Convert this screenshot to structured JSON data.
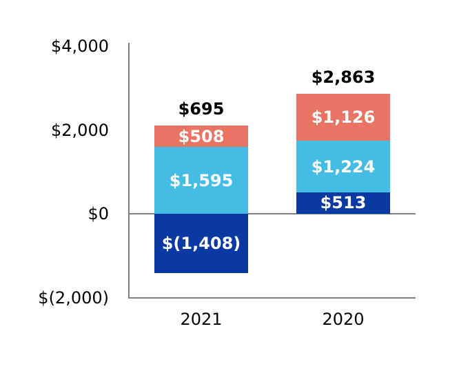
{
  "chart_data": {
    "type": "bar",
    "stacked": true,
    "title": "",
    "xlabel": "",
    "ylabel": "",
    "categories": [
      "2021",
      "2020"
    ],
    "series": [
      {
        "name": "navy-segment",
        "color": "#0A39A4",
        "values": [
          -1408,
          513
        ],
        "labels": [
          "$(1,408)",
          "$513"
        ]
      },
      {
        "name": "sky-segment",
        "color": "#45BCE4",
        "values": [
          1595,
          1224
        ],
        "labels": [
          "$1,595",
          "$1,224"
        ]
      },
      {
        "name": "coral-segment",
        "color": "#E87463",
        "values": [
          508,
          1126
        ],
        "labels": [
          "$508",
          "$1,126"
        ]
      }
    ],
    "totals": [
      {
        "value": 695,
        "label": "$695"
      },
      {
        "value": 2863,
        "label": "$2,863"
      }
    ],
    "y_axis": {
      "range": [
        -2000,
        4000
      ],
      "ticks": [
        {
          "value": 4000,
          "label": "$4,000"
        },
        {
          "value": 2000,
          "label": "$2,000"
        },
        {
          "value": 0,
          "label": "$0"
        },
        {
          "value": -2000,
          "label": "$(2,000)"
        }
      ]
    },
    "grid": false,
    "legend": "none",
    "colors": {
      "axis": "#808080",
      "segment_label": "#FFFFFF",
      "total_label": "#000000",
      "tick_label": "#000000",
      "background": "#FFFFFF"
    }
  }
}
